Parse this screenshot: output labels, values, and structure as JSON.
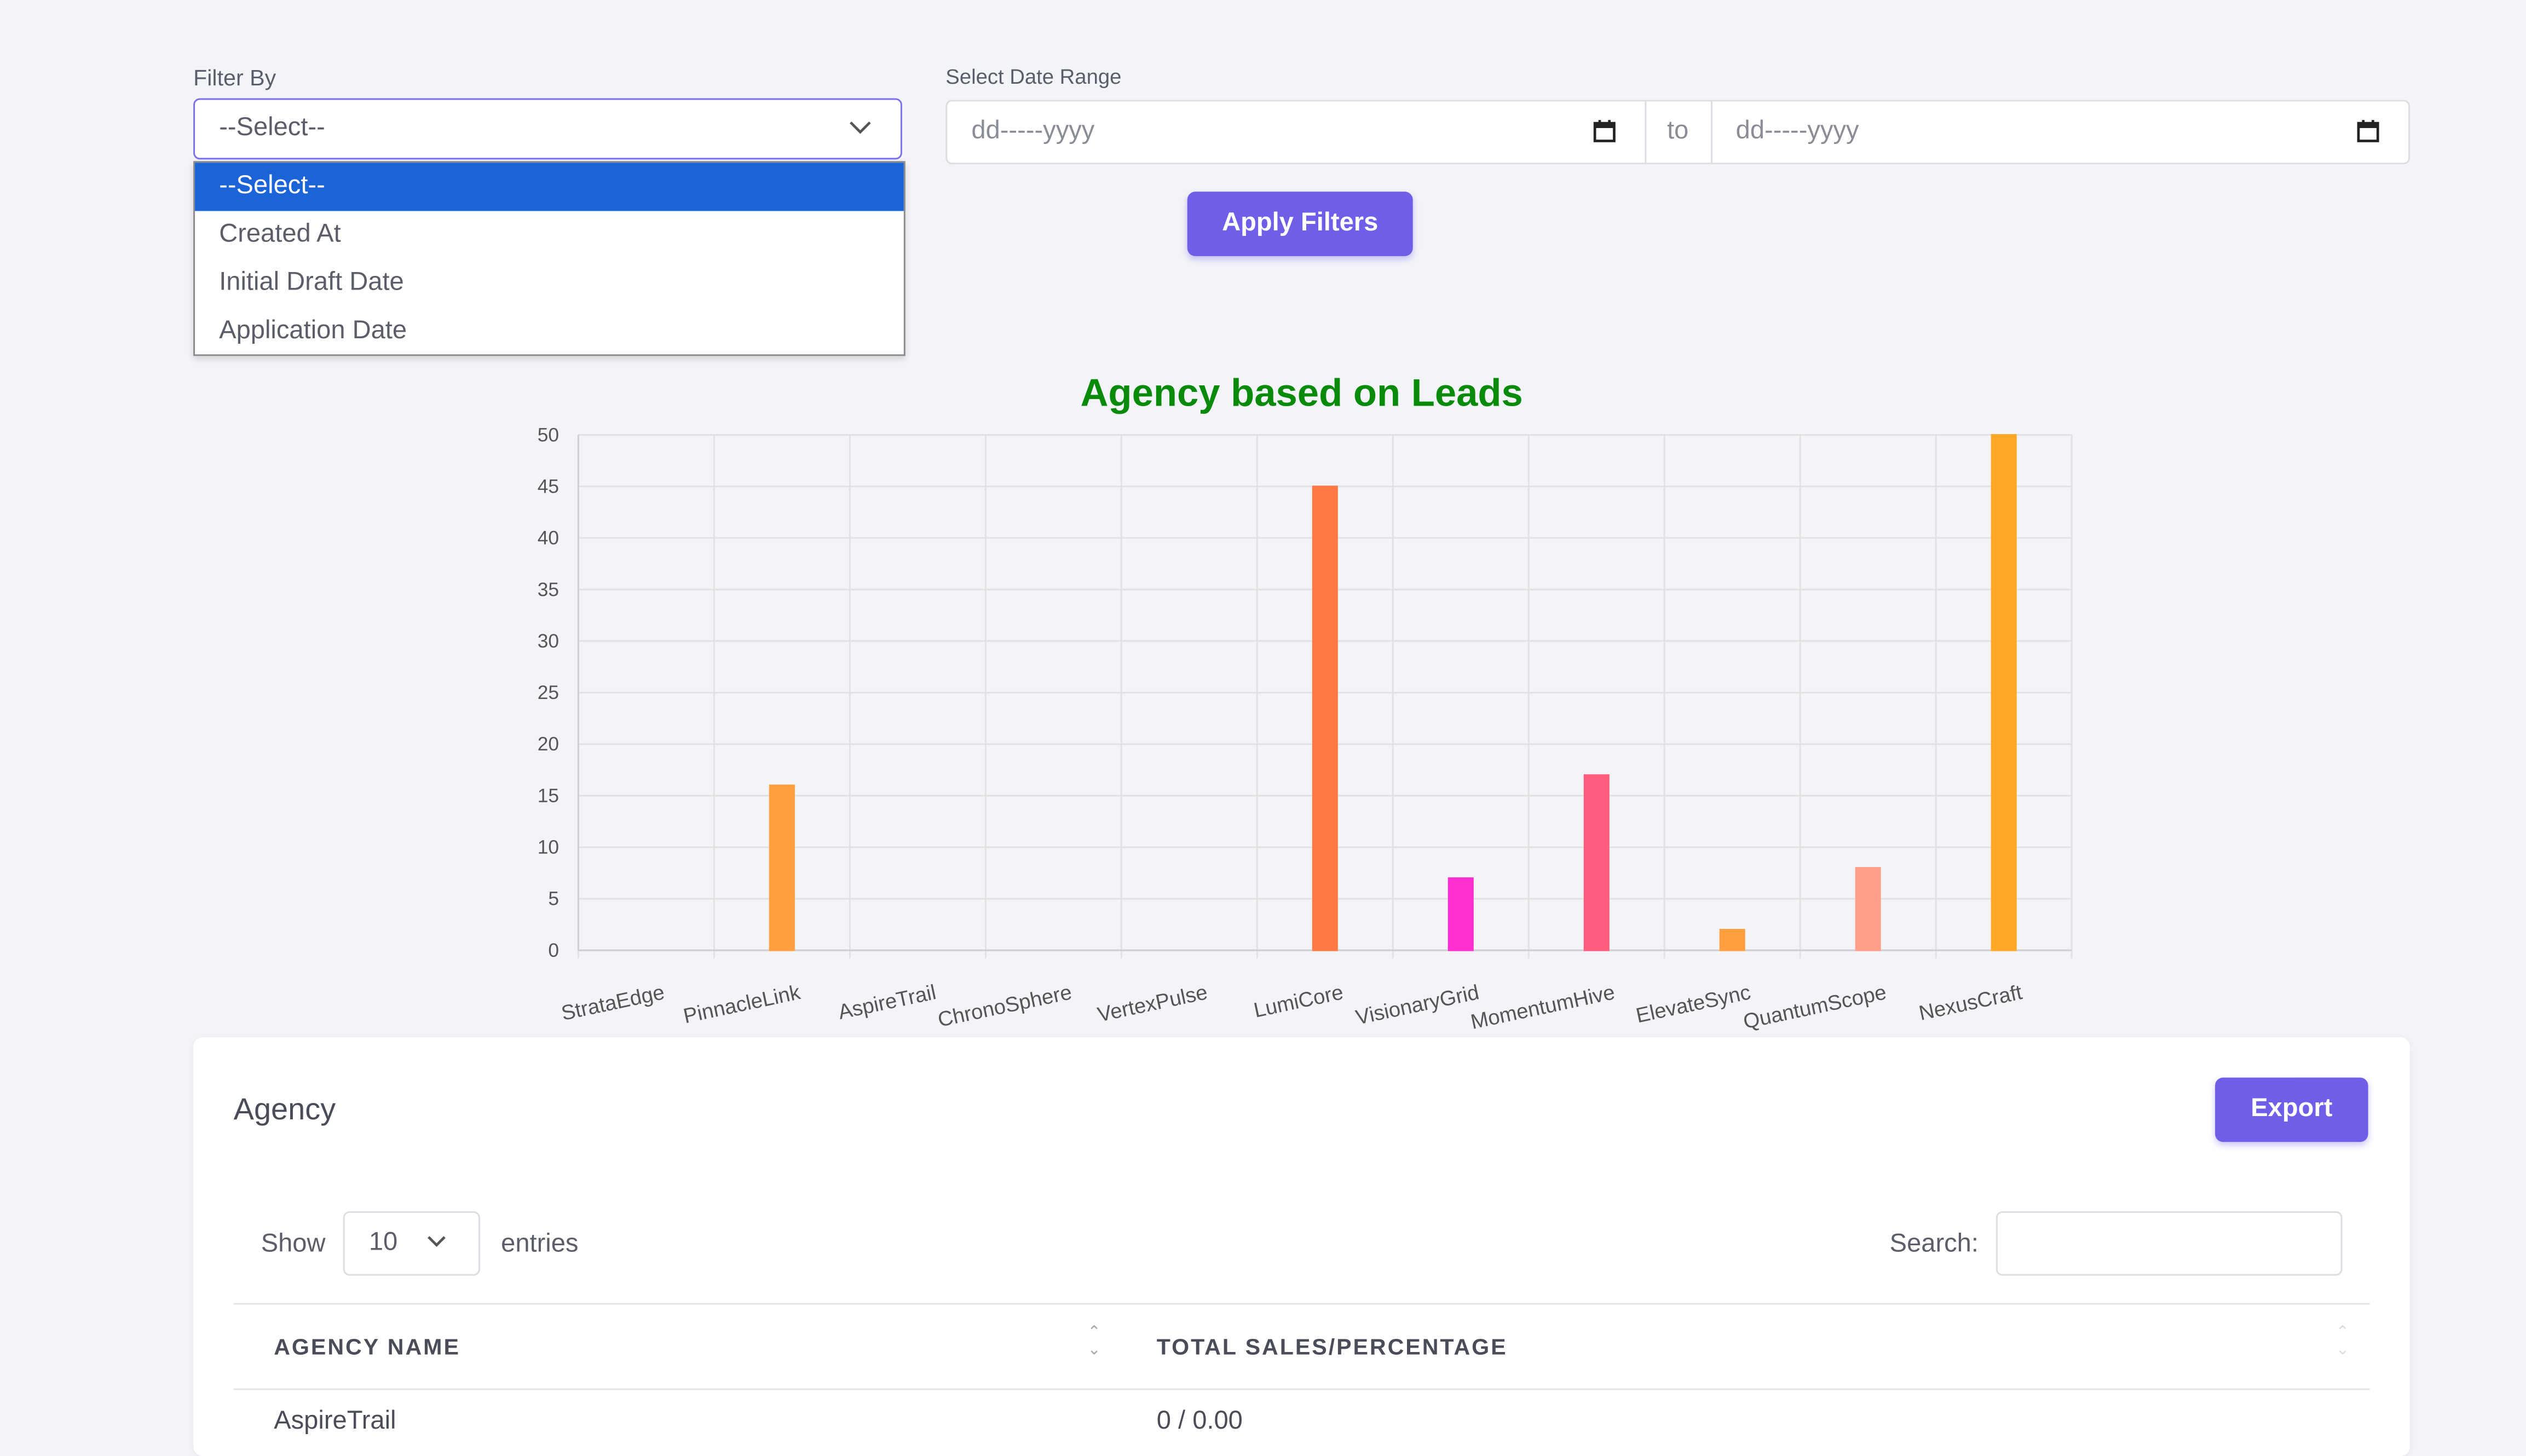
{
  "filters": {
    "filter_by_label": "Filter By",
    "filter_by_value": "--Select--",
    "filter_options": [
      "--Select--",
      "Created At",
      "Initial Draft Date",
      "Application Date"
    ],
    "date_range_label": "Select Date Range",
    "date_from_placeholder": "dd-----yyyy",
    "date_separator": "to",
    "date_to_placeholder": "dd-----yyyy",
    "apply_label": "Apply Filters"
  },
  "chart_data": {
    "type": "bar",
    "title": "Agency based on Leads",
    "categories": [
      "StrataEdge",
      "PinnacleLink",
      "AspireTrail",
      "ChronoSphere",
      "VertexPulse",
      "LumiCore",
      "VisionaryGrid",
      "MomentumHive",
      "ElevateSync",
      "QuantumScope",
      "NexusCraft"
    ],
    "values": [
      0,
      16,
      0,
      0,
      0,
      45,
      7,
      17,
      2,
      8,
      50
    ],
    "colors": [
      "#ff9f40",
      "#ff9f40",
      "#ff9f40",
      "#ff9f40",
      "#ff9f40",
      "#ff7a45",
      "#ff2ed1",
      "#ff5c7f",
      "#ff9f40",
      "#ff9e8a",
      "#ffa726"
    ],
    "ylim": [
      0,
      50
    ],
    "yticks": [
      0,
      5,
      10,
      15,
      20,
      25,
      30,
      35,
      40,
      45,
      50
    ],
    "grid": true,
    "title_color": "#0a8a0a"
  },
  "card": {
    "title": "Agency",
    "export_label": "Export",
    "show_label": "Show",
    "entries_value": "10",
    "entries_label": "entries",
    "search_label": "Search:",
    "columns": [
      "AGENCY NAME",
      "TOTAL SALES/PERCENTAGE"
    ],
    "rows": [
      [
        "AspireTrail",
        "0 / 0.00"
      ]
    ]
  },
  "colors": {
    "accent": "#6e5ee8",
    "dropdown_selected": "#1a64d8"
  }
}
